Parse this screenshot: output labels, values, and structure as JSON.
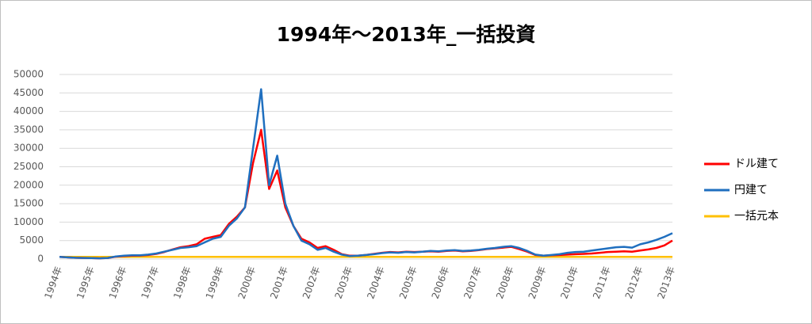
{
  "chart_data": {
    "type": "line",
    "title": "1994年～2013年_一括投資",
    "categories": [
      "1994年",
      null,
      null,
      null,
      "1995年",
      null,
      null,
      null,
      "1996年",
      null,
      null,
      null,
      "1997年",
      null,
      null,
      null,
      "1998年",
      null,
      null,
      null,
      "1999年",
      null,
      null,
      null,
      "2000年",
      null,
      null,
      null,
      "2001年",
      null,
      null,
      null,
      "2002年",
      null,
      null,
      null,
      "2003年",
      null,
      null,
      null,
      "2004年",
      null,
      null,
      null,
      "2005年",
      null,
      null,
      null,
      "2006年",
      null,
      null,
      null,
      "2007年",
      null,
      null,
      null,
      "2008年",
      null,
      null,
      null,
      "2009年",
      null,
      null,
      null,
      "2010年",
      null,
      null,
      null,
      "2011年",
      null,
      null,
      null,
      "2012年",
      null,
      null,
      null,
      "2013年"
    ],
    "series": [
      {
        "name": "ドル建て",
        "color": "#ff0000",
        "values": [
          600,
          450,
          350,
          300,
          250,
          200,
          300,
          650,
          800,
          900,
          950,
          1100,
          1400,
          1900,
          2600,
          3200,
          3500,
          4000,
          5500,
          6000,
          6500,
          9500,
          11500,
          14000,
          26000,
          35000,
          19000,
          24000,
          14000,
          9000,
          5500,
          4500,
          3000,
          3500,
          2500,
          1300,
          900,
          900,
          1100,
          1400,
          1700,
          1900,
          1800,
          2000,
          1900,
          2000,
          2100,
          2000,
          2200,
          2300,
          2100,
          2200,
          2400,
          2700,
          2900,
          3100,
          3300,
          2700,
          2000,
          1100,
          900,
          1000,
          1100,
          1200,
          1300,
          1400,
          1500,
          1700,
          1900,
          2000,
          2100,
          2000,
          2300,
          2600,
          3000,
          3700,
          5000
        ]
      },
      {
        "name": "円建て",
        "color": "#1f6fbf",
        "values": [
          600,
          450,
          350,
          300,
          250,
          200,
          300,
          700,
          900,
          1000,
          1000,
          1200,
          1500,
          2000,
          2500,
          3000,
          3200,
          3500,
          4500,
          5500,
          6000,
          9000,
          11000,
          14000,
          30000,
          46000,
          20000,
          28000,
          15000,
          9000,
          5000,
          4000,
          2500,
          3000,
          2000,
          1200,
          800,
          900,
          1100,
          1300,
          1600,
          1800,
          1700,
          1900,
          1800,
          2000,
          2200,
          2100,
          2300,
          2400,
          2200,
          2300,
          2500,
          2800,
          3000,
          3300,
          3500,
          3000,
          2200,
          1200,
          900,
          1100,
          1300,
          1700,
          1900,
          2000,
          2300,
          2600,
          2900,
          3200,
          3300,
          3100,
          4000,
          4500,
          5200,
          6000,
          7000
        ]
      },
      {
        "name": "一括元本",
        "color": "#ffc000",
        "values": [
          600,
          600,
          600,
          600,
          600,
          600,
          600,
          600,
          600,
          600,
          600,
          600,
          600,
          600,
          600,
          600,
          600,
          600,
          600,
          600,
          600,
          600,
          600,
          600,
          600,
          600,
          600,
          600,
          600,
          600,
          600,
          600,
          600,
          600,
          600,
          600,
          600,
          600,
          600,
          600,
          600,
          600,
          600,
          600,
          600,
          600,
          600,
          600,
          600,
          600,
          600,
          600,
          600,
          600,
          600,
          600,
          600,
          600,
          600,
          600,
          600,
          600,
          600,
          600,
          600,
          600,
          600,
          600,
          600,
          600,
          600,
          600,
          600,
          600,
          600,
          600,
          600
        ]
      }
    ],
    "ylim": [
      0,
      50000
    ],
    "yticks": [
      0,
      5000,
      10000,
      15000,
      20000,
      25000,
      30000,
      35000,
      40000,
      45000,
      50000
    ],
    "grid": true
  }
}
